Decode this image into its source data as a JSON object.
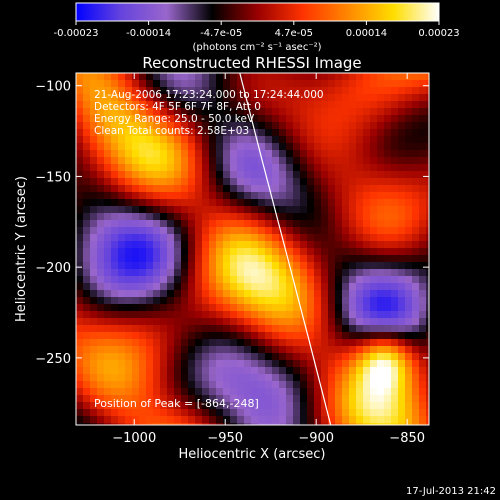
{
  "colors": {
    "background": "#000000",
    "foreground": "#ffffff",
    "colormap": [
      "#0000ff",
      "#6644dd",
      "#9966cc",
      "#000000",
      "#990000",
      "#ff3300",
      "#ff8800",
      "#ffdd00",
      "#ffffff"
    ]
  },
  "colorbar": {
    "ticks": [
      "-0.00023",
      "-0.00014",
      "-4.7e-05",
      "4.7e-05",
      "0.00014",
      "0.00023"
    ],
    "unit_label": "(photons cm⁻² s⁻¹ asec⁻²)"
  },
  "footer": {
    "timestamp": "17-Jul-2013 21:42"
  },
  "chart_data": {
    "type": "heatmap",
    "title": "Reconstructed RHESSI Image",
    "xlabel": "Heliocentric X (arcsec)",
    "ylabel": "Heliocentric Y (arcsec)",
    "xlim": [
      -1032,
      -838
    ],
    "ylim": [
      -287,
      -93
    ],
    "xticks": [
      -1000,
      -950,
      -900,
      -850
    ],
    "yticks": [
      -100,
      -150,
      -200,
      -250
    ],
    "xtick_labels": [
      "−1000",
      "−950",
      "−900",
      "−850"
    ],
    "ytick_labels": [
      "−100",
      "−150",
      "−200",
      "−250"
    ],
    "clim": [
      -0.00023,
      0.00023
    ],
    "annotations": [
      "21-Aug-2006 17:23:24.000 to 17:24:44.000",
      "Detectors: 4F 5F 6F 7F 8F, Att 0",
      "Energy Range: 25.0 - 50.0 keV",
      "Clean    Total counts: 2.58E+03"
    ],
    "peak_label": "Position of Peak = [-864,-248]",
    "peak_position": [
      -864,
      -248
    ],
    "limb_curve": [
      [
        -942,
        -93
      ],
      [
        -930,
        -140
      ],
      [
        -917,
        -190
      ],
      [
        -904,
        -240
      ],
      [
        -892,
        -287
      ]
    ]
  }
}
